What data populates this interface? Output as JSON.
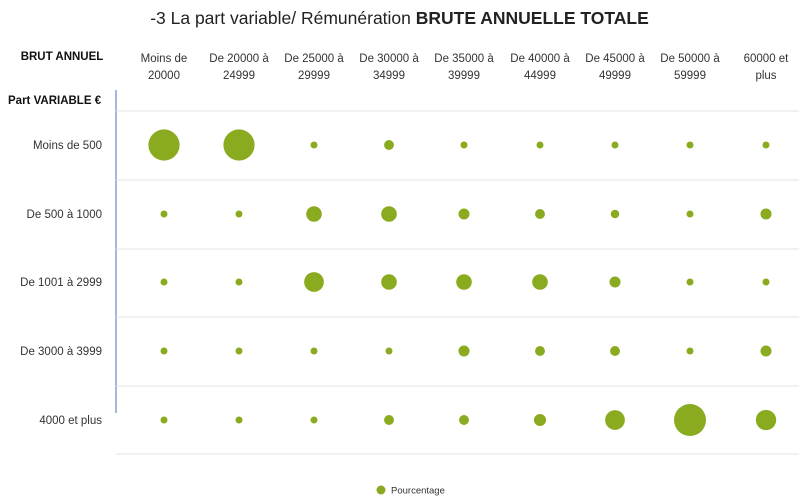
{
  "chart_data": {
    "type": "bubble",
    "title_part1": "-3 La part variable/ Rémunération ",
    "title_part2": "BRUTE ANNUELLE TOTALE",
    "x_axis_title": "BRUT ANNUEL",
    "y_axis_title": "Part VARIABLE €",
    "x_categories": [
      [
        "Moins de",
        "20000"
      ],
      [
        "De 20000 à",
        "24999"
      ],
      [
        "De 25000 à",
        "29999"
      ],
      [
        "De 30000 à",
        "34999"
      ],
      [
        "De 35000 à",
        "39999"
      ],
      [
        "De 40000 à",
        "44999"
      ],
      [
        "De 45000 à",
        "49999"
      ],
      [
        "De 50000 à",
        "59999"
      ],
      [
        "60000 et",
        "plus"
      ]
    ],
    "y_categories": [
      "Moins de 500",
      "De 500 à 1000",
      "De 1001 à 2999",
      "De 3000 à 3999",
      "4000 et plus"
    ],
    "series": [
      {
        "name": "Pourcentage",
        "color": "#8aab1f",
        "values": [
          [
            40,
            40,
            2,
            4,
            2,
            2,
            2,
            2,
            2
          ],
          [
            2,
            2,
            10,
            10,
            5,
            4,
            3,
            2,
            5
          ],
          [
            2,
            2,
            16,
            10,
            10,
            10,
            5,
            2,
            2
          ],
          [
            2,
            2,
            2,
            2,
            5,
            4,
            4,
            2,
            5
          ],
          [
            2,
            2,
            2,
            4,
            4,
            6,
            16,
            42,
            17
          ]
        ]
      }
    ],
    "grid": "horizontal",
    "legend_position": "bottom"
  }
}
